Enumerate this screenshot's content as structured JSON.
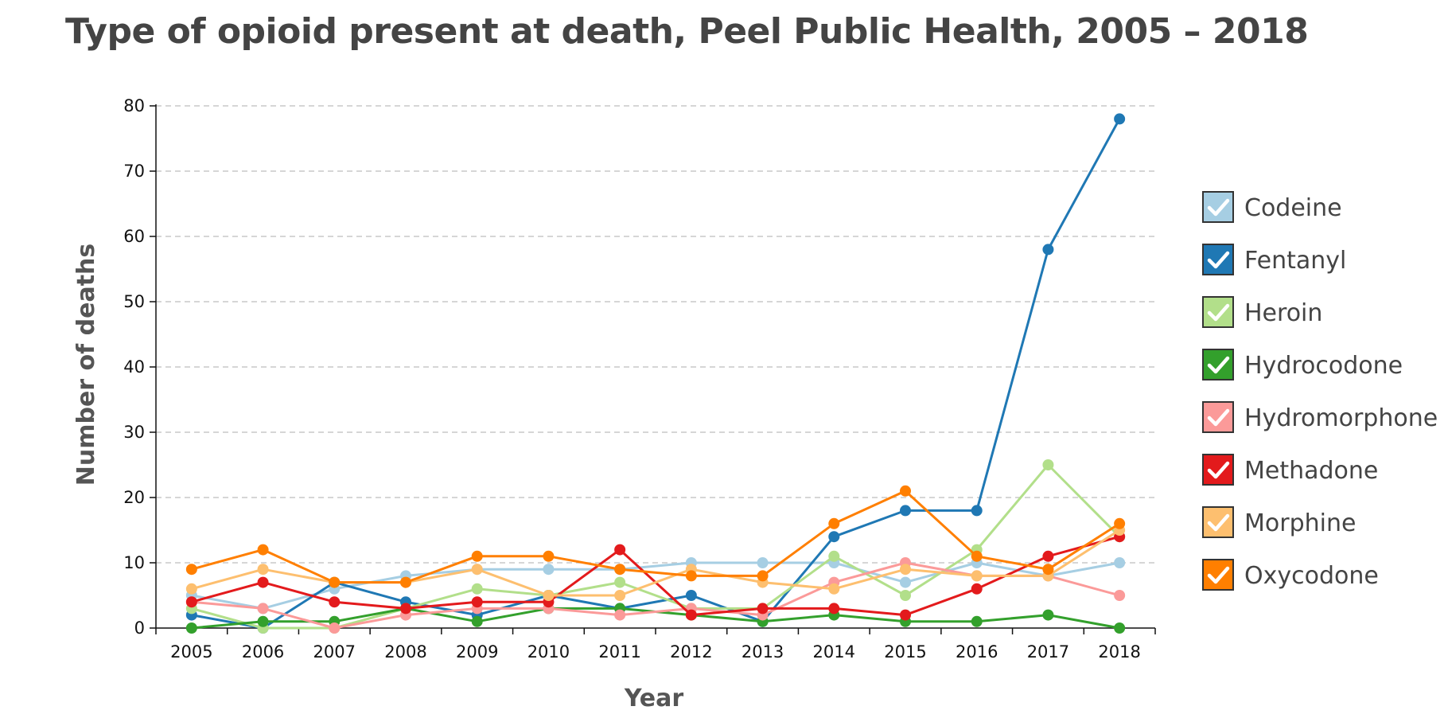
{
  "chart_data": {
    "type": "line",
    "title": "Type of opioid present at death, Peel Public Health, 2005 – 2018",
    "xlabel": "Year",
    "ylabel": "Number of deaths",
    "ylim": [
      0,
      80
    ],
    "yticks": [
      0,
      10,
      20,
      30,
      40,
      50,
      60,
      70,
      80
    ],
    "grid": "horizontal dashed",
    "legend_position": "right",
    "categories": [
      "2005",
      "2006",
      "2007",
      "2008",
      "2009",
      "2010",
      "2011",
      "2012",
      "2013",
      "2014",
      "2015",
      "2016",
      "2017",
      "2018"
    ],
    "series": [
      {
        "name": "Codeine",
        "color": "#a6cee3",
        "values": [
          5,
          3,
          6,
          8,
          9,
          9,
          9,
          10,
          10,
          10,
          7,
          10,
          8,
          10
        ]
      },
      {
        "name": "Fentanyl",
        "color": "#1f78b4",
        "values": [
          2,
          0,
          7,
          4,
          2,
          5,
          3,
          5,
          1,
          14,
          18,
          18,
          58,
          78
        ]
      },
      {
        "name": "Heroin",
        "color": "#b2df8a",
        "values": [
          3,
          0,
          0,
          3,
          6,
          5,
          7,
          3,
          3,
          11,
          5,
          12,
          25,
          14
        ]
      },
      {
        "name": "Hydrocodone",
        "color": "#33a02c",
        "values": [
          0,
          1,
          1,
          3,
          1,
          3,
          3,
          2,
          1,
          2,
          1,
          1,
          2,
          0
        ]
      },
      {
        "name": "Hydromorphone",
        "color": "#fb9a99",
        "values": [
          4,
          3,
          0,
          2,
          3,
          3,
          2,
          3,
          2,
          7,
          10,
          8,
          8,
          5
        ]
      },
      {
        "name": "Methadone",
        "color": "#e31a1c",
        "values": [
          4,
          7,
          4,
          3,
          4,
          4,
          12,
          2,
          3,
          3,
          2,
          6,
          11,
          14
        ]
      },
      {
        "name": "Morphine",
        "color": "#fdbf6f",
        "values": [
          6,
          9,
          7,
          7,
          9,
          5,
          5,
          9,
          7,
          6,
          9,
          8,
          8,
          15
        ]
      },
      {
        "name": "Oxycodone",
        "color": "#ff7f00",
        "values": [
          9,
          12,
          7,
          7,
          11,
          11,
          9,
          8,
          8,
          16,
          21,
          11,
          9,
          16
        ]
      }
    ]
  }
}
